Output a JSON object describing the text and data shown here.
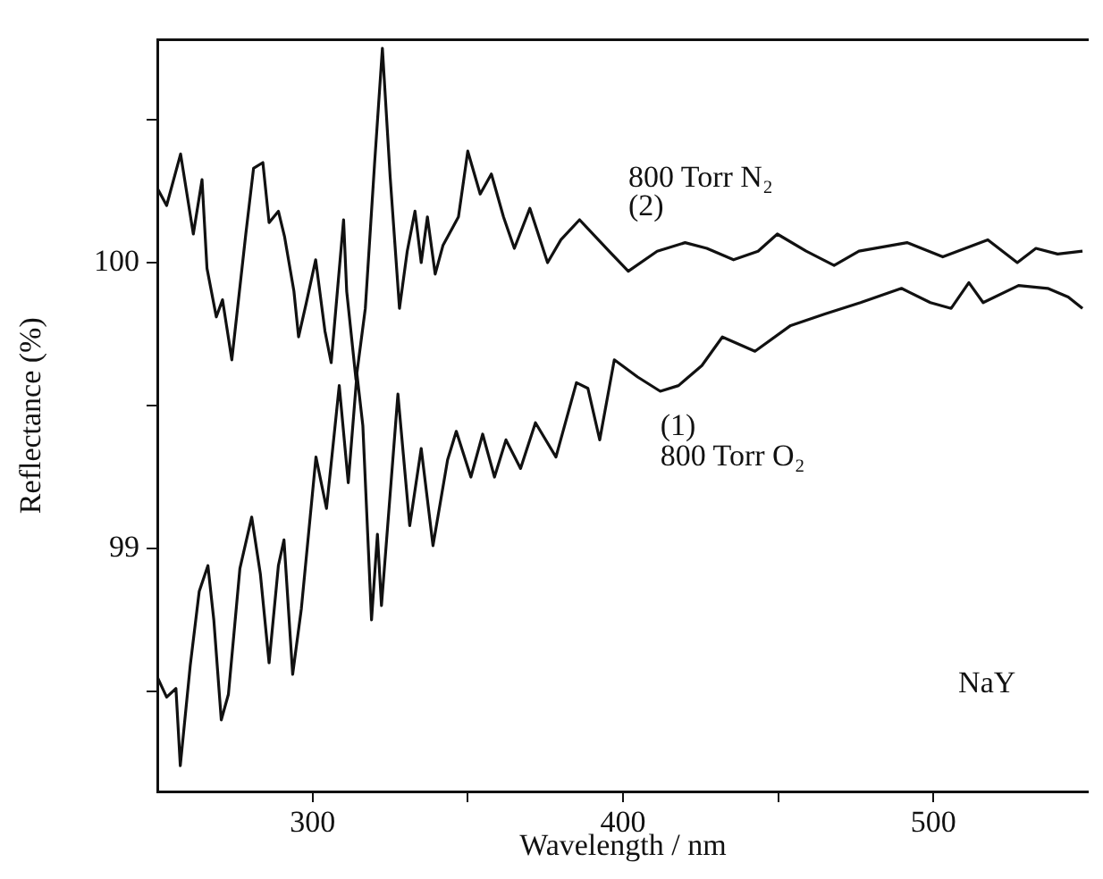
{
  "chart_data": {
    "type": "line",
    "xlabel": "Wavelength / nm",
    "ylabel": "Reflectance (%)",
    "xlim": [
      250,
      550
    ],
    "ylim": [
      98.15,
      100.78
    ],
    "xticks": [
      300,
      {
        "value": 350,
        "label": null
      },
      400,
      {
        "value": 450,
        "label": null
      },
      500
    ],
    "yticks": [
      {
        "value": 98.5,
        "label": null
      },
      99,
      {
        "value": 99.5,
        "label": null
      },
      100,
      {
        "value": 100.5,
        "label": null
      }
    ],
    "grid": false,
    "legend": false,
    "marker": "none",
    "line_style": "solid",
    "annotations": [
      "(2)",
      "(1)",
      "NaY"
    ],
    "series": [
      {
        "name": "800 Torr N₂",
        "color": "#111111",
        "x": [
          250,
          253,
          257.5,
          261.6,
          264.4,
          266,
          269,
          271,
          274,
          278.5,
          281,
          284,
          286,
          289,
          291,
          294,
          295.5,
          298,
          301,
          304,
          306,
          310,
          311,
          314,
          317,
          320,
          322.5,
          325,
          328,
          330.5,
          333,
          335,
          337,
          339.5,
          342,
          347,
          350,
          354,
          357.6,
          361.5,
          365,
          370,
          375.7,
          380,
          386,
          395.5,
          401.7,
          411,
          420,
          427,
          435.6,
          443.5,
          449.7,
          459,
          468,
          476,
          491.5,
          503,
          517.5,
          527,
          533,
          540,
          548
        ],
        "values": [
          100.26,
          100.2,
          100.38,
          100.1,
          100.29,
          99.98,
          99.81,
          99.87,
          99.66,
          100.1,
          100.33,
          100.35,
          100.14,
          100.18,
          100.09,
          99.9,
          99.74,
          99.86,
          100.01,
          99.76,
          99.65,
          100.15,
          99.9,
          99.59,
          99.84,
          100.35,
          100.75,
          100.3,
          99.84,
          100.04,
          100.18,
          100,
          100.16,
          99.96,
          100.06,
          100.16,
          100.39,
          100.24,
          100.31,
          100.16,
          100.05,
          100.19,
          100,
          100.08,
          100.15,
          100.04,
          99.97,
          100.04,
          100.07,
          100.05,
          100.01,
          100.04,
          100.1,
          100.04,
          99.99,
          100.04,
          100.07,
          100.02,
          100.08,
          100,
          100.05,
          100.03,
          100.04
        ]
      },
      {
        "name": "800 Torr O₂",
        "color": "#111111",
        "x": [
          250,
          253,
          256,
          257.4,
          260.6,
          263.5,
          266.3,
          268.2,
          270.6,
          272.9,
          276.6,
          280.4,
          283.2,
          286,
          289,
          290.8,
          293.6,
          296.4,
          301.1,
          304.5,
          308.6,
          311.5,
          314.3,
          316.2,
          319,
          320.9,
          322.2,
          327.5,
          331.3,
          335,
          338.8,
          343.5,
          346.3,
          351,
          354.8,
          358.6,
          362.3,
          367,
          371.8,
          378.4,
          385,
          388.7,
          392.5,
          397.2,
          404.7,
          412,
          417.9,
          425.4,
          432,
          442.5,
          454,
          465,
          476.5,
          489.7,
          499,
          505.7,
          511.4,
          516,
          527.4,
          536.8,
          543.4,
          548
        ],
        "values": [
          98.55,
          98.48,
          98.51,
          98.24,
          98.59,
          98.85,
          98.94,
          98.75,
          98.4,
          98.49,
          98.93,
          99.11,
          98.91,
          98.6,
          98.94,
          99.03,
          98.56,
          98.79,
          99.32,
          99.14,
          99.57,
          99.23,
          99.61,
          99.43,
          98.75,
          99.05,
          98.8,
          99.54,
          99.08,
          99.35,
          99.01,
          99.31,
          99.41,
          99.25,
          99.4,
          99.25,
          99.38,
          99.28,
          99.44,
          99.32,
          99.58,
          99.56,
          99.38,
          99.66,
          99.6,
          99.55,
          99.57,
          99.64,
          99.74,
          99.69,
          99.78,
          99.82,
          99.86,
          99.91,
          99.86,
          99.84,
          99.93,
          99.86,
          99.92,
          99.91,
          99.88,
          99.84
        ]
      }
    ]
  }
}
